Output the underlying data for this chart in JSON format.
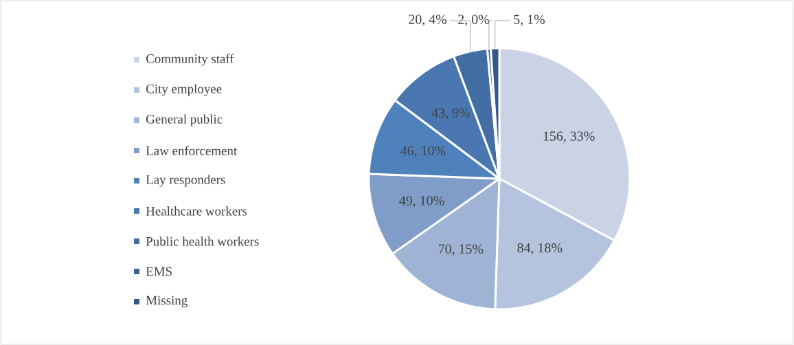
{
  "chart_data": {
    "type": "pie",
    "categories": [
      "Community staff",
      "City employee",
      "General public",
      "Law enforcement",
      "Lay responders",
      "Healthcare workers",
      "Public health workers",
      "EMS",
      "Missing"
    ],
    "values": [
      156,
      84,
      70,
      49,
      46,
      43,
      20,
      2,
      5
    ],
    "colors": [
      "#cad3e5",
      "#b5c4de",
      "#9fb3d4",
      "#7f9dc8",
      "#4f81bd",
      "#4a77b0",
      "#436ea3",
      "#3d6396",
      "#365888"
    ],
    "value_labels": [
      "156, 33%",
      "84, 18%",
      "70, 15%",
      "49, 10%",
      "46, 10%",
      "43, 9%",
      "20, 4%",
      "2, 0%",
      "5, 1%"
    ],
    "legend": "left"
  }
}
